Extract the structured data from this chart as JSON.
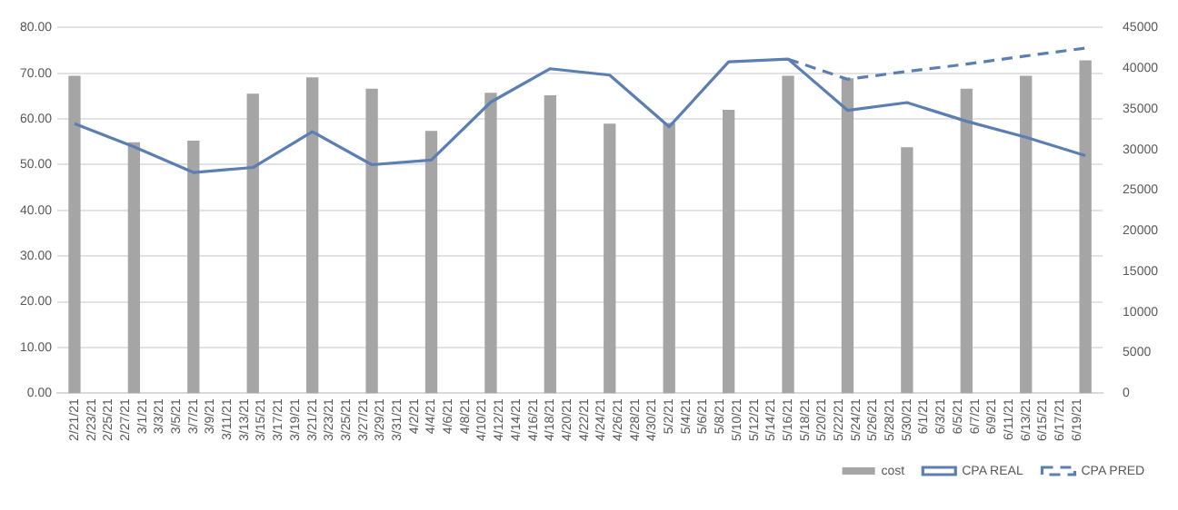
{
  "chart_data": {
    "type": "bar",
    "x": [
      "--02-21",
      "--02-28",
      "--03-07",
      "--03-14",
      "--03-21",
      "--03-28",
      "--04-04",
      "--04-11",
      "--04-18",
      "--04-25",
      "--05-02",
      "--05-09",
      "--05-16",
      "--05-23",
      "--05-30",
      "--06-06",
      "--06-13",
      "--06-20"
    ],
    "series": [
      {
        "name": "cost",
        "axis": "y2",
        "color": "#a5a5a5",
        "values": [
          39000,
          30800,
          31000,
          36800,
          38800,
          37400,
          32200,
          36900,
          36600,
          33100,
          33200,
          34800,
          39000,
          38700,
          30200,
          37400,
          39000,
          40900
        ]
      },
      {
        "name": "CPA REAL",
        "type": "line",
        "axis": "y",
        "color": "#5b7fb3",
        "line_style": "solid",
        "values": [
          59.0,
          53.9,
          48.3,
          49.4,
          57.2,
          50.0,
          51.0,
          63.7,
          71.0,
          69.6,
          58.3,
          72.5,
          73.1,
          61.9,
          63.6,
          59.5,
          56.0,
          52.0
        ]
      },
      {
        "name": "CPA PRED",
        "type": "line",
        "axis": "y",
        "color": "#5b7fb3",
        "line_style": "dashed",
        "x": [
          "--05-16",
          "--05-23",
          "--05-30",
          "--06-06",
          "--06-13",
          "--06-20"
        ],
        "values": [
          73.1,
          68.7,
          70.4,
          72.0,
          73.8,
          75.5
        ]
      }
    ],
    "xlim": [
      "--02-20",
      "--06-21"
    ],
    "xticks": [
      {
        "value": "--02-21",
        "label": "2/21/21"
      },
      {
        "value": "--02-23",
        "label": "2/23/21"
      },
      {
        "value": "--02-25",
        "label": "2/25/21"
      },
      {
        "value": "--02-27",
        "label": "2/27/21"
      },
      {
        "value": "--03-01",
        "label": "3/1/21"
      },
      {
        "value": "--03-03",
        "label": "3/3/21"
      },
      {
        "value": "--03-05",
        "label": "3/5/21"
      },
      {
        "value": "--03-07",
        "label": "3/7/21"
      },
      {
        "value": "--03-09",
        "label": "3/9/21"
      },
      {
        "value": "--03-11",
        "label": "3/11/21"
      },
      {
        "value": "--03-13",
        "label": "3/13/21"
      },
      {
        "value": "--03-15",
        "label": "3/15/21"
      },
      {
        "value": "--03-17",
        "label": "3/17/21"
      },
      {
        "value": "--03-19",
        "label": "3/19/21"
      },
      {
        "value": "--03-21",
        "label": "3/21/21"
      },
      {
        "value": "--03-23",
        "label": "3/23/21"
      },
      {
        "value": "--03-25",
        "label": "3/25/21"
      },
      {
        "value": "--03-27",
        "label": "3/27/21"
      },
      {
        "value": "--03-29",
        "label": "3/29/21"
      },
      {
        "value": "--03-31",
        "label": "3/31/21"
      },
      {
        "value": "--04-02",
        "label": "4/2/21"
      },
      {
        "value": "--04-04",
        "label": "4/4/21"
      },
      {
        "value": "--04-06",
        "label": "4/6/21"
      },
      {
        "value": "--04-08",
        "label": "4/8/21"
      },
      {
        "value": "--04-10",
        "label": "4/10/21"
      },
      {
        "value": "--04-12",
        "label": "4/12/21"
      },
      {
        "value": "--04-14",
        "label": "4/14/21"
      },
      {
        "value": "--04-16",
        "label": "4/16/21"
      },
      {
        "value": "--04-18",
        "label": "4/18/21"
      },
      {
        "value": "--04-20",
        "label": "4/20/21"
      },
      {
        "value": "--04-22",
        "label": "4/22/21"
      },
      {
        "value": "--04-24",
        "label": "4/24/21"
      },
      {
        "value": "--04-26",
        "label": "4/26/21"
      },
      {
        "value": "--04-28",
        "label": "4/28/21"
      },
      {
        "value": "--04-30",
        "label": "4/30/21"
      },
      {
        "value": "--05-02",
        "label": "5/2/21"
      },
      {
        "value": "--05-04",
        "label": "5/4/21"
      },
      {
        "value": "--05-06",
        "label": "5/6/21"
      },
      {
        "value": "--05-08",
        "label": "5/8/21"
      },
      {
        "value": "--05-10",
        "label": "5/10/21"
      },
      {
        "value": "--05-12",
        "label": "5/12/21"
      },
      {
        "value": "--05-14",
        "label": "5/14/21"
      },
      {
        "value": "--05-16",
        "label": "5/16/21"
      },
      {
        "value": "--05-18",
        "label": "5/18/21"
      },
      {
        "value": "--05-20",
        "label": "5/20/21"
      },
      {
        "value": "--05-22",
        "label": "5/22/21"
      },
      {
        "value": "--05-24",
        "label": "5/24/21"
      },
      {
        "value": "--05-26",
        "label": "5/26/21"
      },
      {
        "value": "--05-28",
        "label": "5/28/21"
      },
      {
        "value": "--05-30",
        "label": "5/30/21"
      },
      {
        "value": "--06-01",
        "label": "6/1/21"
      },
      {
        "value": "--06-03",
        "label": "6/3/21"
      },
      {
        "value": "--06-05",
        "label": "6/5/21"
      },
      {
        "value": "--06-07",
        "label": "6/7/21"
      },
      {
        "value": "--06-09",
        "label": "6/9/21"
      },
      {
        "value": "--06-11",
        "label": "6/11/21"
      },
      {
        "value": "--06-13",
        "label": "6/13/21"
      },
      {
        "value": "--06-15",
        "label": "6/15/21"
      },
      {
        "value": "--06-17",
        "label": "6/17/21"
      },
      {
        "value": "--06-19",
        "label": "6/19/21"
      }
    ],
    "ylim": [
      0,
      80
    ],
    "yticks": [
      {
        "value": 0,
        "label": "0.00"
      },
      {
        "value": 10,
        "label": "10.00"
      },
      {
        "value": 20,
        "label": "20.00"
      },
      {
        "value": 30,
        "label": "30.00"
      },
      {
        "value": 40,
        "label": "40.00"
      },
      {
        "value": 50,
        "label": "50.00"
      },
      {
        "value": 60,
        "label": "60.00"
      },
      {
        "value": 70,
        "label": "70.00"
      },
      {
        "value": 80,
        "label": "80.00"
      }
    ],
    "y2lim": [
      0,
      45000
    ],
    "y2ticks": [
      0,
      5000,
      10000,
      15000,
      20000,
      25000,
      30000,
      35000,
      40000,
      45000
    ],
    "grid": "y",
    "legend": "bottom"
  }
}
